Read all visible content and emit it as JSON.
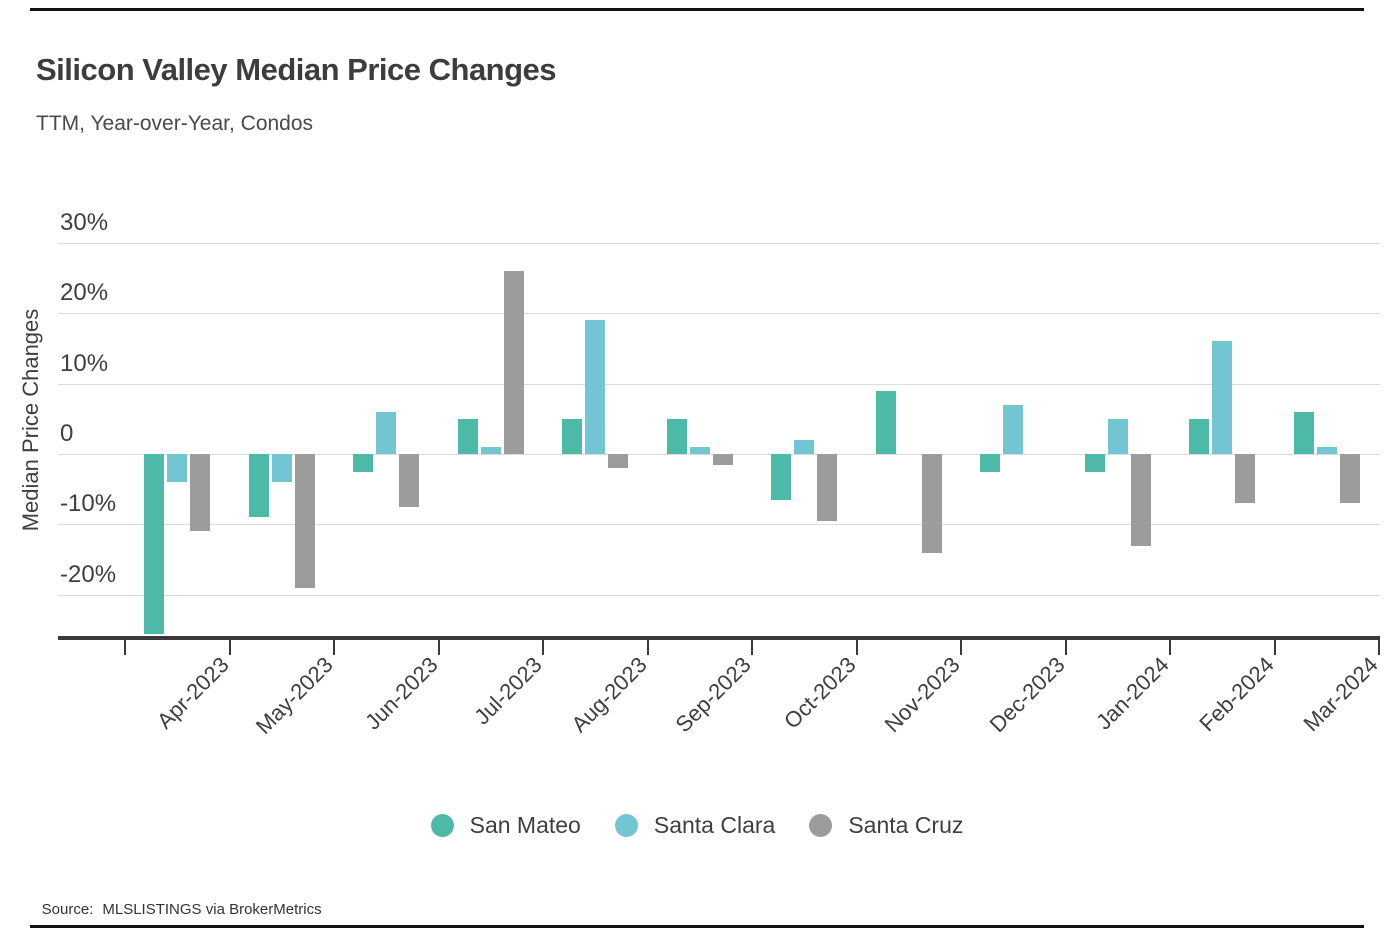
{
  "header": {
    "title": "Silicon Valley Median Price Changes",
    "subtitle": "TTM, Year-over-Year, Condos"
  },
  "chart_data": {
    "type": "bar",
    "title": "Silicon Valley Median Price Changes",
    "subtitle": "TTM, Year-over-Year, Condos",
    "xlabel": "",
    "ylabel": "Median Price Changes",
    "categories": [
      "Apr-2023",
      "May-2023",
      "Jun-2023",
      "Jul-2023",
      "Aug-2023",
      "Sep-2023",
      "Oct-2023",
      "Nov-2023",
      "Dec-2023",
      "Jan-2024",
      "Feb-2024",
      "Mar-2024"
    ],
    "series": [
      {
        "name": "San Mateo",
        "color": "#4cbaa6",
        "values": [
          -25.5,
          -9,
          -2.5,
          5,
          5,
          5,
          -6.5,
          9,
          -2.5,
          -2.5,
          5,
          6
        ]
      },
      {
        "name": "Santa Clara",
        "color": "#72c5d3",
        "values": [
          -4,
          -4,
          6,
          1,
          19,
          1,
          2,
          0,
          7,
          5,
          16,
          1
        ]
      },
      {
        "name": "Santa Cruz",
        "color": "#9c9c9c",
        "values": [
          -11,
          -19,
          -7.5,
          26,
          -2,
          -1.5,
          -9.5,
          -14,
          0,
          -13,
          -7,
          -7
        ]
      }
    ],
    "yticks": [
      30,
      20,
      10,
      0,
      -10,
      -20
    ],
    "ytick_labels": [
      "30%",
      "20%",
      "10%",
      "0",
      "-10%",
      "-20%"
    ],
    "ylim": [
      -26,
      31
    ],
    "grid": true,
    "legend_position": "bottom",
    "units": "percent"
  },
  "footer": {
    "source_label": "Source:",
    "source_text": "MLSLISTINGS via BrokerMetrics"
  }
}
